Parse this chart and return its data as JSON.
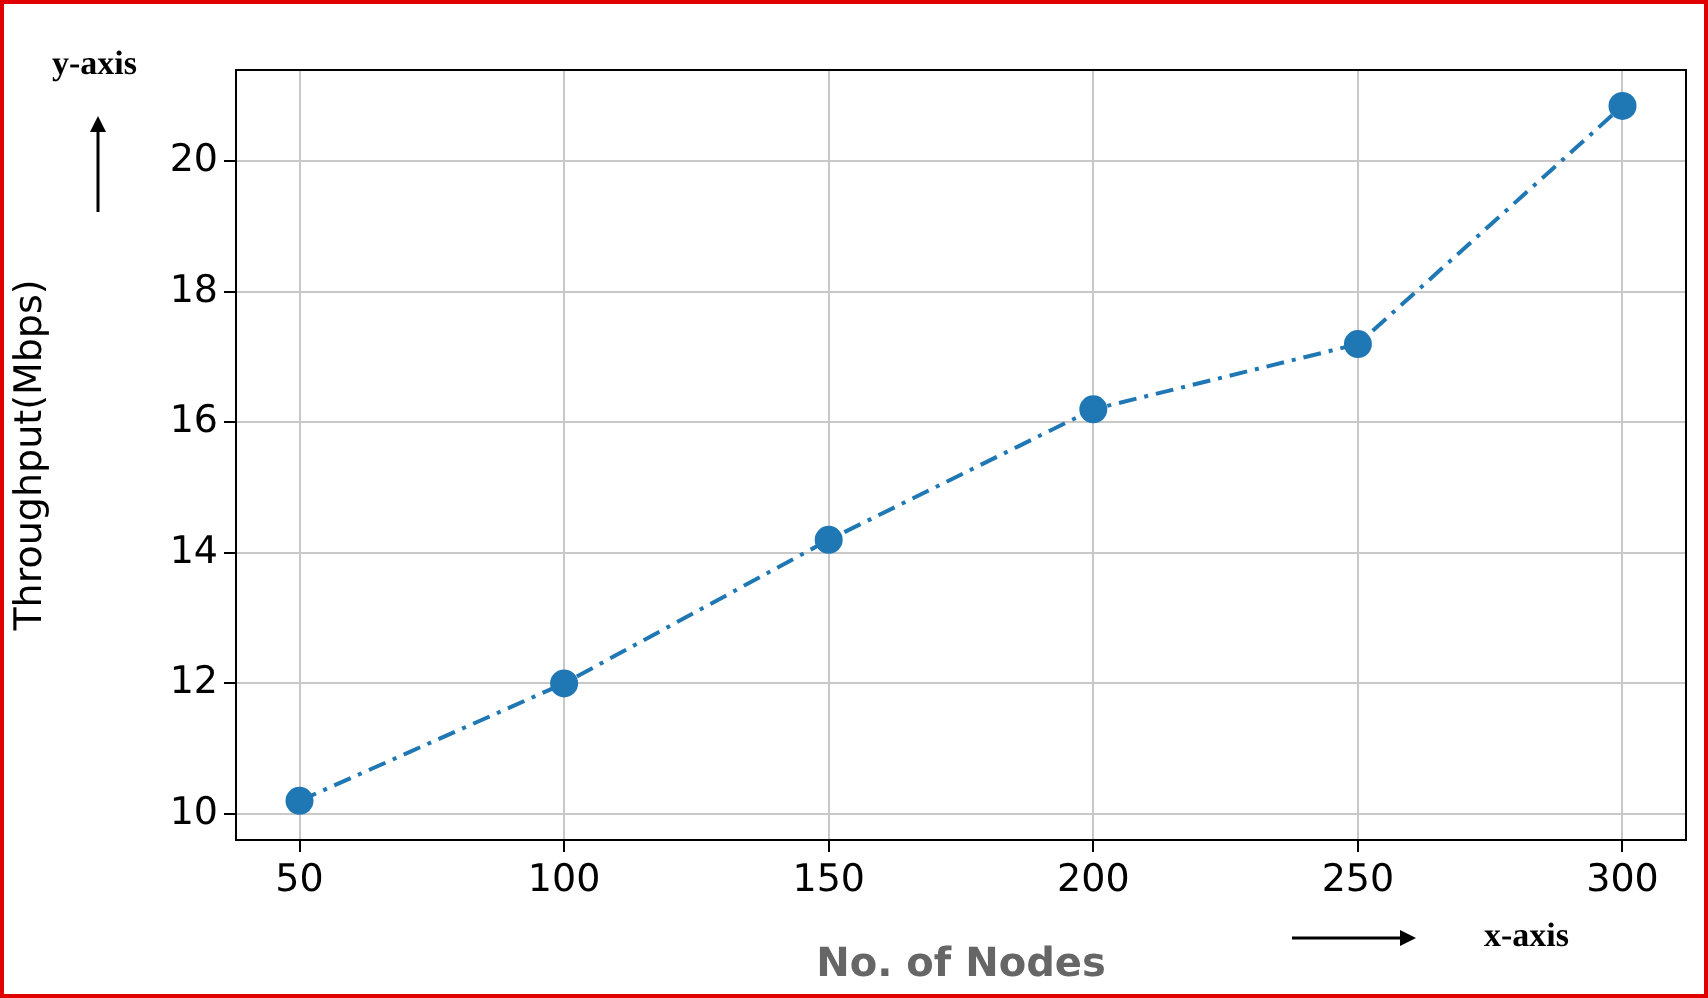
{
  "chart_data": {
    "type": "line",
    "xlabel": "No. of Nodes",
    "ylabel": "Throughput(Mbps)",
    "annotations": [
      "y-axis",
      "x-axis"
    ],
    "x": [
      50,
      100,
      150,
      200,
      250,
      300
    ],
    "series": [
      {
        "color": "#1f77b4",
        "values": [
          10.2,
          12.0,
          14.2,
          16.2,
          17.2,
          20.85
        ]
      }
    ],
    "xlim": [
      38,
      312
    ],
    "xticks": [
      50,
      100,
      150,
      200,
      250,
      300
    ],
    "ylim": [
      9.6,
      21.4
    ],
    "yticks": [
      10,
      12,
      14,
      16,
      18,
      20
    ],
    "grid": true,
    "legend": false,
    "marker": "circle",
    "line_style": "dashed"
  }
}
